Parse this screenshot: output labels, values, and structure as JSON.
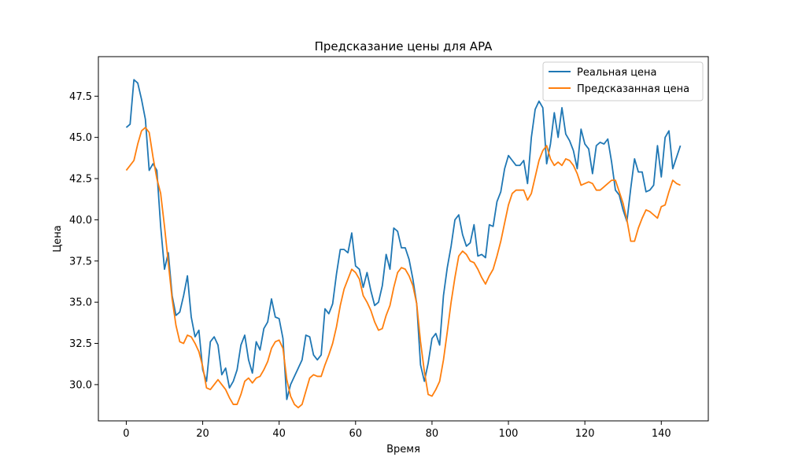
{
  "chart_data": {
    "type": "line",
    "title": "Предсказание цены для APA",
    "xlabel": "Время",
    "ylabel": "Цена",
    "xlim": [
      -7.3,
      152.3
    ],
    "ylim": [
      27.8,
      49.9
    ],
    "x_ticks": [
      0,
      20,
      40,
      60,
      80,
      100,
      120,
      140
    ],
    "y_ticks": [
      30.0,
      32.5,
      35.0,
      37.5,
      40.0,
      42.5,
      45.0,
      47.5
    ],
    "y_tick_labels": [
      "30.0",
      "32.5",
      "35.0",
      "37.5",
      "40.0",
      "42.5",
      "45.0",
      "47.5"
    ],
    "grid": false,
    "legend_position": "top-right",
    "series": [
      {
        "name": "Реальная цена",
        "color": "#1f77b4",
        "values": [
          45.6,
          45.8,
          48.5,
          48.3,
          47.3,
          46.1,
          43.0,
          43.4,
          43.0,
          39.6,
          37.0,
          38.0,
          35.4,
          34.2,
          34.4,
          35.4,
          36.6,
          34.1,
          32.9,
          33.3,
          30.9,
          30.2,
          32.6,
          32.9,
          32.4,
          30.6,
          31.0,
          29.8,
          30.2,
          30.9,
          32.4,
          33.0,
          31.5,
          30.7,
          32.6,
          32.1,
          33.4,
          33.8,
          35.2,
          34.1,
          34.0,
          32.8,
          29.1,
          30.0,
          30.5,
          31.0,
          31.5,
          33.0,
          32.9,
          31.8,
          31.5,
          31.8,
          34.6,
          34.3,
          34.9,
          36.7,
          38.2,
          38.2,
          38.0,
          39.2,
          37.2,
          37.0,
          35.9,
          36.8,
          35.7,
          34.8,
          35.0,
          36.0,
          37.9,
          37.0,
          39.5,
          39.3,
          38.3,
          38.3,
          37.6,
          36.4,
          34.9,
          31.2,
          30.2,
          31.3,
          32.8,
          33.1,
          32.4,
          35.4,
          37.1,
          38.4,
          40.0,
          40.3,
          39.1,
          38.4,
          38.6,
          39.7,
          37.8,
          37.9,
          37.7,
          39.7,
          39.6,
          41.1,
          41.7,
          43.1,
          43.9,
          43.6,
          43.3,
          43.3,
          43.6,
          42.2,
          45.0,
          46.7,
          47.2,
          46.8,
          43.4,
          44.6,
          46.5,
          45.0,
          46.8,
          45.2,
          44.8,
          44.2,
          43.1,
          45.5,
          44.6,
          44.3,
          42.8,
          44.5,
          44.7,
          44.6,
          44.9,
          43.5,
          41.8,
          41.5,
          40.6,
          39.9,
          41.9,
          43.7,
          42.9,
          42.9,
          41.7,
          41.8,
          42.1,
          44.5,
          42.6,
          45.0,
          45.4,
          43.1,
          43.8,
          44.5
        ]
      },
      {
        "name": "Предсказанная цена",
        "color": "#ff7f0e",
        "values": [
          43.0,
          43.3,
          43.6,
          44.6,
          45.4,
          45.6,
          45.3,
          43.8,
          42.5,
          41.6,
          39.6,
          37.4,
          35.2,
          33.6,
          32.6,
          32.5,
          33.0,
          32.9,
          32.5,
          32.0,
          31.1,
          29.8,
          29.7,
          30.0,
          30.3,
          30.0,
          29.7,
          29.2,
          28.8,
          28.8,
          29.4,
          30.2,
          30.4,
          30.1,
          30.4,
          30.5,
          30.9,
          31.4,
          32.2,
          32.6,
          32.7,
          32.2,
          30.3,
          29.3,
          28.8,
          28.6,
          28.8,
          29.6,
          30.4,
          30.6,
          30.5,
          30.5,
          31.2,
          31.8,
          32.5,
          33.5,
          34.8,
          35.8,
          36.4,
          37.0,
          36.8,
          36.4,
          35.4,
          35.0,
          34.5,
          33.8,
          33.3,
          33.4,
          34.2,
          34.8,
          35.9,
          36.8,
          37.1,
          37.0,
          36.6,
          36.0,
          34.9,
          32.6,
          30.8,
          29.4,
          29.3,
          29.7,
          30.2,
          31.5,
          33.2,
          35.0,
          36.5,
          37.8,
          38.1,
          37.9,
          37.5,
          37.4,
          37.0,
          36.5,
          36.1,
          36.6,
          37.0,
          37.8,
          38.7,
          39.8,
          40.9,
          41.6,
          41.8,
          41.8,
          41.8,
          41.2,
          41.6,
          42.6,
          43.6,
          44.2,
          44.5,
          43.7,
          43.3,
          43.5,
          43.3,
          43.7,
          43.6,
          43.3,
          42.8,
          42.1,
          42.2,
          42.3,
          42.2,
          41.8,
          41.8,
          42.0,
          42.2,
          42.4,
          42.4,
          41.7,
          41.0,
          40.0,
          38.7,
          38.7,
          39.5,
          40.1,
          40.6,
          40.5,
          40.3,
          40.1,
          40.8,
          40.9,
          41.7,
          42.4,
          42.2,
          42.1
        ]
      }
    ]
  }
}
